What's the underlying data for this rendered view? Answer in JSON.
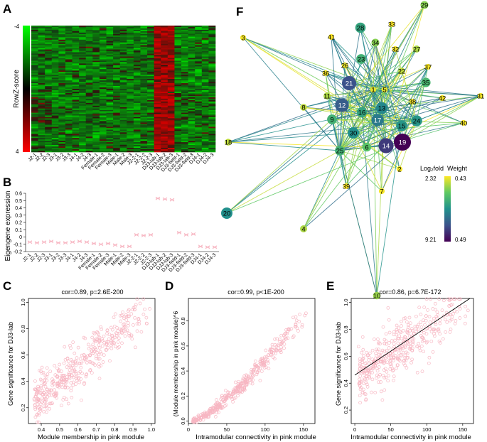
{
  "panel_labels": {
    "A": "A",
    "B": "B",
    "C": "C",
    "D": "D",
    "E": "E",
    "F": "F"
  },
  "colors": {
    "pink": "#f7b6c2",
    "heat_low": "#00ff00",
    "heat_mid": "#000000",
    "heat_high": "#ff0000",
    "line": "#000000"
  },
  "heatmap": {
    "ylabel": "RowZ-score",
    "scale_top": "-4",
    "scale_bottom": "4",
    "samples": [
      "J2-1",
      "J2-2",
      "J2-3",
      "J3-1",
      "J3-2",
      "J3-3",
      "J4-1",
      "J4-2",
      "J4-3",
      "Female-1",
      "Female-2",
      "Female-3",
      "Male-1",
      "Male-2",
      "Male-3",
      "J2-2-1",
      "J2-2-2",
      "J2-2-3",
      "DJ3-lab-1",
      "DJ3-lab-2",
      "DJ3-lab-3",
      "DJ3-field-1",
      "DJ3-field-2",
      "DJ3-field-3",
      "DJ4-1",
      "DJ4-2",
      "DJ4-3"
    ]
  },
  "chart_data": [
    {
      "id": "B",
      "type": "scatter",
      "title": "",
      "xlabel": "",
      "ylabel": "Eigengene expression",
      "ylim": [
        -0.2,
        0.6
      ],
      "yticks": [
        "-0.2",
        "-0.1",
        "0",
        "0.1",
        "0.2",
        "0.3",
        "0.4",
        "0.5",
        "0.6"
      ],
      "categories": [
        "J2-1",
        "J2-2",
        "J2-3",
        "J3-1",
        "J3-2",
        "J3-3",
        "J4-1",
        "J4-2",
        "J4-3",
        "Female-1",
        "Female-2",
        "Female-3",
        "Male-1",
        "Male-2",
        "Male-3",
        "J2-2-1",
        "J2-2-2",
        "J2-2-3",
        "DJ3-lab-1",
        "DJ3-lab-2",
        "DJ3-lab-3",
        "DJ3-field-1",
        "DJ3-field-2",
        "DJ3-field-3",
        "DJ4-1",
        "DJ4-2",
        "DJ4-3"
      ],
      "values": [
        -0.07,
        -0.08,
        -0.07,
        -0.06,
        -0.08,
        -0.08,
        -0.07,
        -0.06,
        -0.07,
        -0.09,
        -0.1,
        -0.09,
        -0.11,
        -0.13,
        -0.13,
        0.03,
        0.02,
        0.03,
        0.53,
        0.52,
        0.51,
        0.06,
        0.03,
        0.04,
        -0.13,
        -0.14,
        -0.14
      ]
    },
    {
      "id": "C",
      "type": "scatter",
      "title": "cor=0.89, p=2.6E-200",
      "xlabel": "Module membership in pink module",
      "ylabel": "Gene significance for DJ3-lab",
      "xlim": [
        0.33,
        1.02
      ],
      "ylim": [
        0.08,
        1.03
      ],
      "xticks": [
        "0.4",
        "0.5",
        "0.6",
        "0.7",
        "0.8",
        "0.9",
        "1.0"
      ],
      "yticks": [
        "0.2",
        "0.4",
        "0.6",
        "0.8",
        "1.0"
      ],
      "trend": {
        "points": 420,
        "spread": 0.09,
        "x_from": 0.36,
        "x_to": 1.0,
        "y_from": 0.22,
        "y_to": 0.98
      }
    },
    {
      "id": "D",
      "type": "scatter",
      "title": "cor=0.99, p<1E-200",
      "xlabel": "Intramodular connectivity in pink module",
      "ylabel": "(Module membership in pink module)^6",
      "xlim": [
        0,
        165
      ],
      "ylim": [
        -0.02,
        0.98
      ],
      "xticks": [
        "0",
        "50",
        "100",
        "150"
      ],
      "yticks": [
        "0.0",
        "0.2",
        "0.4",
        "0.6",
        "0.8"
      ],
      "trend": {
        "points": 420,
        "spread": 0.035,
        "x_from": 5,
        "x_to": 158,
        "y_from": 0.0,
        "y_to": 0.92,
        "curve": 1.35
      }
    },
    {
      "id": "E",
      "type": "scatter",
      "title": "cor=0.86, p=6.7E-172",
      "xlabel": "Intramodular connectivity in pink module",
      "ylabel": "Gene significance for DJ3-lab",
      "xlim": [
        -5,
        165
      ],
      "ylim": [
        0.1,
        1.03
      ],
      "xticks": [
        "0",
        "50",
        "100",
        "150"
      ],
      "yticks": [
        "0.2",
        "0.4",
        "0.6",
        "0.8",
        "1.0"
      ],
      "fit_line": {
        "x0": 0,
        "y0": 0.46,
        "x1": 160,
        "y1": 1.04
      },
      "trend": {
        "points": 420,
        "spread": 0.1,
        "x_from": 5,
        "x_to": 158,
        "y_from": 0.46,
        "y_to": 0.99
      }
    }
  ],
  "network": {
    "legend_title_left": "Log₂fold",
    "legend_title_right": "Weight",
    "legend_top_left": "2.32",
    "legend_top_right": "0.43",
    "legend_bottom_left": "9.21",
    "legend_bottom_right": "0.49",
    "node_ids": [
      "1",
      "2",
      "3",
      "4",
      "5",
      "6",
      "7",
      "8",
      "9",
      "10",
      "11",
      "12",
      "13",
      "14",
      "15",
      "16",
      "17",
      "18",
      "19",
      "20",
      "21",
      "22",
      "23",
      "24",
      "25",
      "26",
      "27",
      "28",
      "29",
      "30",
      "31",
      "32",
      "33",
      "34",
      "35",
      "36",
      "37",
      "38",
      "39",
      "40",
      "41",
      "42"
    ],
    "node_fold": {
      "1": 2.6,
      "2": 2.4,
      "3": 2.4,
      "4": 3.2,
      "5": 2.6,
      "6": 4.2,
      "7": 2.4,
      "8": 3.0,
      "9": 4.8,
      "10": 3.4,
      "11": 3.2,
      "12": 7.2,
      "13": 6.0,
      "14": 8.0,
      "15": 5.6,
      "16": 5.2,
      "17": 6.4,
      "18": 3.0,
      "19": 9.21,
      "20": 5.8,
      "21": 7.5,
      "22": 3.0,
      "23": 4.8,
      "24": 5.6,
      "25": 4.8,
      "26": 2.6,
      "27": 3.2,
      "28": 5.2,
      "29": 3.6,
      "30": 5.8,
      "31": 2.4,
      "32": 2.4,
      "33": 2.32,
      "34": 3.6,
      "35": 4.6,
      "36": 2.4,
      "37": 2.4,
      "38": 2.4,
      "39": 2.32,
      "40": 2.4,
      "41": 2.32,
      "42": 2.4
    }
  }
}
